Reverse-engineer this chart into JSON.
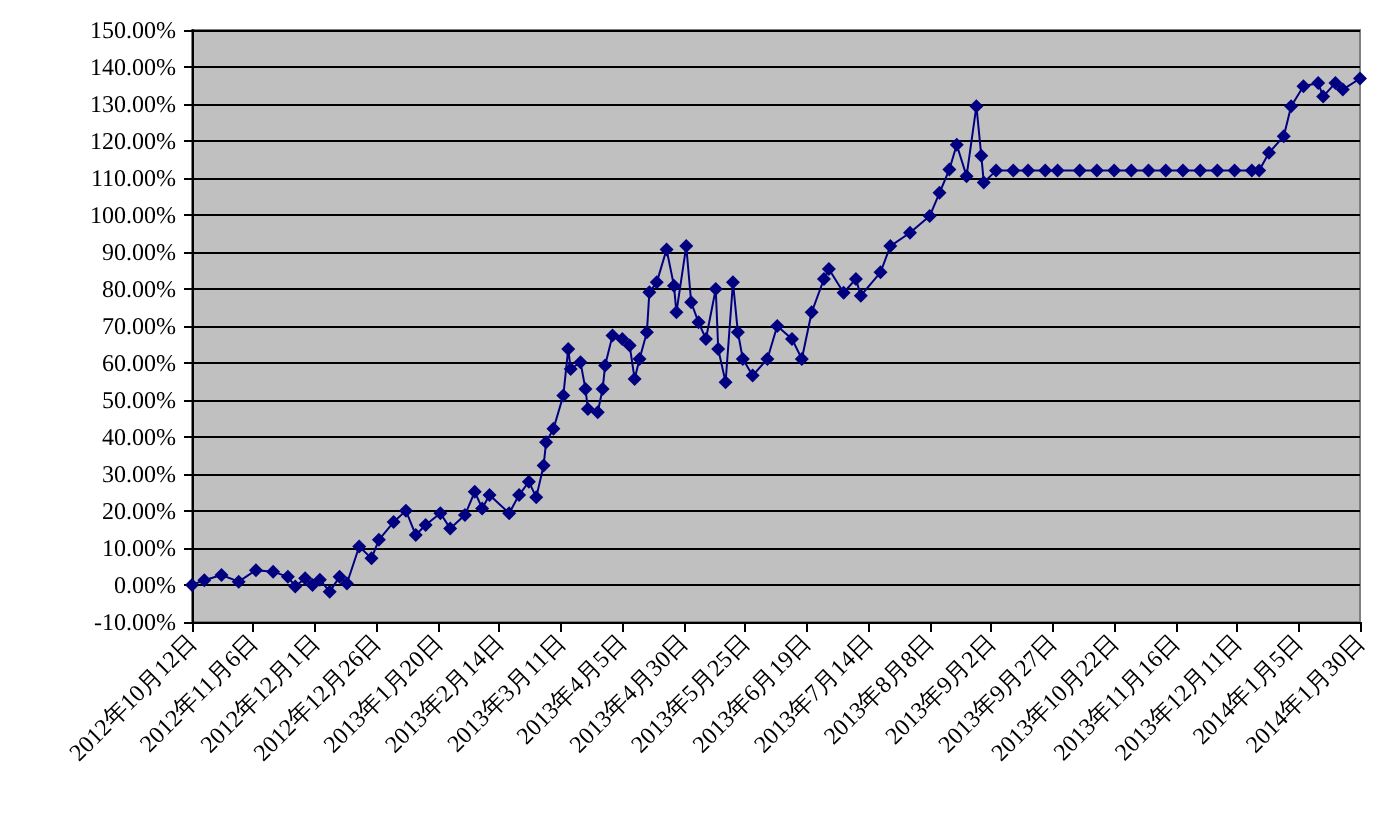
{
  "chart_data": {
    "type": "line",
    "x": [
      "2012-10-12",
      "2012-10-17",
      "2012-10-24",
      "2012-10-31",
      "2012-11-07",
      "2012-11-14",
      "2012-11-20",
      "2012-11-23",
      "2012-11-27",
      "2012-11-30",
      "2012-12-03",
      "2012-12-07",
      "2012-12-11",
      "2012-12-14",
      "2012-12-19",
      "2012-12-24",
      "2012-12-27",
      "2013-01-02",
      "2013-01-07",
      "2013-01-11",
      "2013-01-15",
      "2013-01-21",
      "2013-01-25",
      "2013-01-31",
      "2013-02-04",
      "2013-02-07",
      "2013-02-10",
      "2013-02-18",
      "2013-02-22",
      "2013-02-26",
      "2013-03-01",
      "2013-03-04",
      "2013-03-05",
      "2013-03-08",
      "2013-03-12",
      "2013-03-14",
      "2013-03-15",
      "2013-03-19",
      "2013-03-21",
      "2013-03-22",
      "2013-03-26",
      "2013-03-28",
      "2013-03-29",
      "2013-04-01",
      "2013-04-05",
      "2013-04-08",
      "2013-04-10",
      "2013-04-12",
      "2013-04-15",
      "2013-04-16",
      "2013-04-19",
      "2013-04-23",
      "2013-04-26",
      "2013-04-27",
      "2013-05-01",
      "2013-05-03",
      "2013-05-06",
      "2013-05-09",
      "2013-05-13",
      "2013-05-14",
      "2013-05-17",
      "2013-05-20",
      "2013-05-22",
      "2013-05-24",
      "2013-05-28",
      "2013-06-03",
      "2013-06-07",
      "2013-06-13",
      "2013-06-17",
      "2013-06-21",
      "2013-06-26",
      "2013-06-28",
      "2013-07-04",
      "2013-07-09",
      "2013-07-11",
      "2013-07-19",
      "2013-07-23",
      "2013-07-31",
      "2013-08-08",
      "2013-08-12",
      "2013-08-16",
      "2013-08-19",
      "2013-08-23",
      "2013-08-27",
      "2013-08-29",
      "2013-08-30",
      "2013-09-04",
      "2013-09-11",
      "2013-09-17",
      "2013-09-24",
      "2013-09-29",
      "2013-10-08",
      "2013-10-15",
      "2013-10-22",
      "2013-10-29",
      "2013-11-05",
      "2013-11-12",
      "2013-11-19",
      "2013-11-26",
      "2013-12-03",
      "2013-12-10",
      "2013-12-17",
      "2013-12-20",
      "2013-12-24",
      "2013-12-30",
      "2014-01-02",
      "2014-01-07",
      "2014-01-13",
      "2014-01-15",
      "2014-01-20",
      "2014-01-23",
      "2014-01-30"
    ],
    "series": [
      {
        "color": "#000080",
        "values": [
          0,
          1.3,
          2.7,
          0.9,
          4,
          3.6,
          2.2,
          -0.4,
          1.8,
          0,
          1.4,
          -1.8,
          2.2,
          0.4,
          10.4,
          7.2,
          12.2,
          17,
          20.1,
          13.5,
          16.2,
          19.4,
          15.3,
          18.9,
          25.2,
          20.7,
          24.3,
          19.4,
          24.3,
          27.9,
          23.7,
          32.3,
          38.6,
          42.2,
          51.2,
          63.8,
          58.4,
          60.2,
          53,
          47.6,
          46.7,
          53,
          59.3,
          67.4,
          66.5,
          64.7,
          55.7,
          61.1,
          68.3,
          79.1,
          81.8,
          90.7,
          80.9,
          73.7,
          91.6,
          76.4,
          71,
          66.5,
          80,
          63.8,
          54.8,
          81.8,
          68.3,
          61.1,
          56.6,
          61.1,
          70,
          66.5,
          61.1,
          73.7,
          82.7,
          85.4,
          79,
          82.7,
          78.2,
          84.5,
          91.6,
          95.2,
          99.7,
          106,
          112.3,
          119,
          110.5,
          129.4,
          116,
          108.8,
          112,
          112,
          112,
          112,
          112,
          112,
          112,
          112,
          112,
          112,
          112,
          112,
          112,
          112,
          112,
          112,
          112,
          116.8,
          121.3,
          129.4,
          134.8,
          135.7,
          132,
          135.7,
          133.9,
          136.9
        ]
      }
    ],
    "xlim": [
      "2012-10-12",
      "2014-01-30"
    ],
    "xticks": [
      {
        "value": "2012-10-12",
        "label": "2012年10月12日"
      },
      {
        "value": "2012-11-06",
        "label": "2012年11月6日"
      },
      {
        "value": "2012-12-01",
        "label": "2012年12月1日"
      },
      {
        "value": "2012-12-26",
        "label": "2012年12月26日"
      },
      {
        "value": "2013-01-20",
        "label": "2013年1月20日"
      },
      {
        "value": "2013-02-14",
        "label": "2013年2月14日"
      },
      {
        "value": "2013-03-11",
        "label": "2013年3月11日"
      },
      {
        "value": "2013-04-05",
        "label": "2013年4月5日"
      },
      {
        "value": "2013-04-30",
        "label": "2013年4月30日"
      },
      {
        "value": "2013-05-25",
        "label": "2013年5月25日"
      },
      {
        "value": "2013-06-19",
        "label": "2013年6月19日"
      },
      {
        "value": "2013-07-14",
        "label": "2013年7月14日"
      },
      {
        "value": "2013-08-08",
        "label": "2013年8月8日"
      },
      {
        "value": "2013-09-02",
        "label": "2013年9月2日"
      },
      {
        "value": "2013-09-27",
        "label": "2013年9月27日"
      },
      {
        "value": "2013-10-22",
        "label": "2013年10月22日"
      },
      {
        "value": "2013-11-16",
        "label": "2013年11月16日"
      },
      {
        "value": "2013-12-11",
        "label": "2013年12月11日"
      },
      {
        "value": "2014-01-05",
        "label": "2014年1月5日"
      },
      {
        "value": "2014-01-30",
        "label": "2014年1月30日"
      }
    ],
    "ylim": [
      -10,
      150
    ],
    "yticks": [
      {
        "value": -10,
        "label": "-10.00%"
      },
      {
        "value": 0,
        "label": "0.00%"
      },
      {
        "value": 10,
        "label": "10.00%"
      },
      {
        "value": 20,
        "label": "20.00%"
      },
      {
        "value": 30,
        "label": "30.00%"
      },
      {
        "value": 40,
        "label": "40.00%"
      },
      {
        "value": 50,
        "label": "50.00%"
      },
      {
        "value": 60,
        "label": "60.00%"
      },
      {
        "value": 70,
        "label": "70.00%"
      },
      {
        "value": 80,
        "label": "80.00%"
      },
      {
        "value": 90,
        "label": "90.00%"
      },
      {
        "value": 100,
        "label": "100.00%"
      },
      {
        "value": 110,
        "label": "110.00%"
      },
      {
        "value": 120,
        "label": "120.00%"
      },
      {
        "value": 130,
        "label": "130.00%"
      },
      {
        "value": 140,
        "label": "140.00%"
      },
      {
        "value": 150,
        "label": "150.00%"
      }
    ],
    "grid": "y",
    "marker": "diamond",
    "line_style": "solid"
  }
}
